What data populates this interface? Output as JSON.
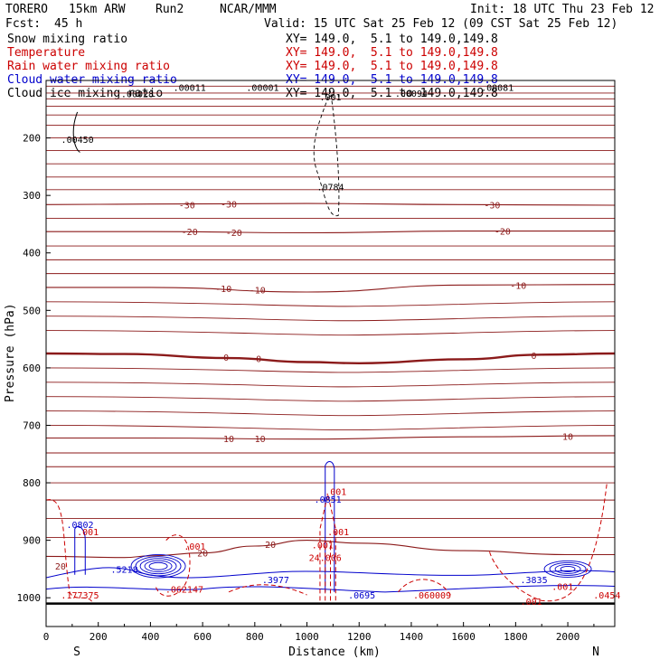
{
  "header": {
    "model": "TORERO",
    "resolution": "15km ARW",
    "run": "Run2",
    "org": "NCAR/MMM",
    "init": "Init: 18 UTC Thu 23 Feb 12",
    "fcst_label": "Fcst:",
    "fcst_value": "45 h",
    "valid": "Valid: 15 UTC Sat 25 Feb 12 (09 CST Sat 25 Feb 12)"
  },
  "fields": [
    {
      "name": "Snow mixing ratio",
      "xy": "XY= 149.0,  5.1 to 149.0,149.8",
      "color": "#000000"
    },
    {
      "name": "Temperature",
      "xy": "XY= 149.0,  5.1 to 149.0,149.8",
      "color": "#cc0000"
    },
    {
      "name": "Rain water mixing ratio",
      "xy": "XY= 149.0,  5.1 to 149.0,149.8",
      "color": "#cc0000"
    },
    {
      "name": "Cloud water mixing ratio",
      "xy": "XY= 149.0,  5.1 to 149.0,149.8",
      "color": "#0000cc"
    },
    {
      "name": "Cloud ice mixing ratio",
      "xy": "XY= 149.0,  5.1 to 149.0,149.8",
      "color": "#000000"
    }
  ],
  "chart_data": {
    "type": "line",
    "title": "",
    "xlabel": "Distance (km)",
    "ylabel": "Pressure (hPa)",
    "xlim": [
      0,
      2180
    ],
    "ylim": [
      1050,
      100
    ],
    "x_ticks": [
      0,
      200,
      400,
      600,
      800,
      1000,
      1200,
      1400,
      1600,
      1800,
      2000
    ],
    "y_ticks": [
      200,
      300,
      400,
      500,
      600,
      700,
      800,
      900,
      1000
    ],
    "x_end_labels": {
      "left": "S",
      "right": "N"
    },
    "temperature_color": "#8b1a1a",
    "temperature_contours": [
      {
        "level": -30,
        "points": [
          [
            0,
            316
          ],
          [
            400,
            315
          ],
          [
            1000,
            314
          ],
          [
            1600,
            316
          ],
          [
            2180,
            317
          ]
        ]
      },
      {
        "level": -20,
        "points": [
          [
            0,
            363
          ],
          [
            400,
            363
          ],
          [
            1000,
            365
          ],
          [
            1600,
            362
          ],
          [
            2180,
            362
          ]
        ]
      },
      {
        "level": -10,
        "points": [
          [
            0,
            460
          ],
          [
            400,
            460
          ],
          [
            1000,
            468
          ],
          [
            1600,
            456
          ],
          [
            2180,
            455
          ]
        ]
      },
      {
        "level": 0,
        "points": [
          [
            0,
            575
          ],
          [
            300,
            576
          ],
          [
            700,
            583
          ],
          [
            1000,
            590
          ],
          [
            1200,
            592
          ],
          [
            1600,
            585
          ],
          [
            1900,
            577
          ],
          [
            2180,
            575
          ]
        ]
      },
      {
        "level": 10,
        "points": [
          [
            0,
            722
          ],
          [
            400,
            722
          ],
          [
            1000,
            724
          ],
          [
            1600,
            720
          ],
          [
            2180,
            718
          ]
        ]
      },
      {
        "level": 20,
        "points": [
          [
            0,
            928
          ],
          [
            300,
            930
          ],
          [
            400,
            927
          ],
          [
            600,
            922
          ],
          [
            800,
            910
          ],
          [
            1000,
            900
          ],
          [
            1200,
            905
          ],
          [
            1600,
            918
          ],
          [
            2000,
            925
          ],
          [
            2180,
            925
          ]
        ]
      }
    ],
    "contour_labels": [
      {
        "text": "-30",
        "x": 540,
        "p": 316
      },
      {
        "text": "-30",
        "x": 700,
        "p": 315
      },
      {
        "text": "-30",
        "x": 1710,
        "p": 316
      },
      {
        "text": "-20",
        "x": 550,
        "p": 363
      },
      {
        "text": "-20",
        "x": 720,
        "p": 364
      },
      {
        "text": "-20",
        "x": 1750,
        "p": 362
      },
      {
        "text": "-10",
        "x": 680,
        "p": 462
      },
      {
        "text": "-10",
        "x": 810,
        "p": 464
      },
      {
        "text": "-10",
        "x": 1810,
        "p": 456
      },
      {
        "text": "0",
        "x": 690,
        "p": 581
      },
      {
        "text": "0",
        "x": 815,
        "p": 584
      },
      {
        "text": "0",
        "x": 1870,
        "p": 578
      },
      {
        "text": "10",
        "x": 700,
        "p": 723
      },
      {
        "text": "10",
        "x": 820,
        "p": 723
      },
      {
        "text": "10",
        "x": 2000,
        "p": 719
      },
      {
        "text": "20",
        "x": 600,
        "p": 922
      },
      {
        "text": "20",
        "x": 860,
        "p": 907
      },
      {
        "text": "20",
        "x": 55,
        "p": 945
      }
    ],
    "snow_labels": [
      {
        "text": ".00028",
        "x": 350,
        "p": 123
      },
      {
        "text": ".00011",
        "x": 550,
        "p": 112
      },
      {
        "text": ".00001",
        "x": 830,
        "p": 112
      },
      {
        "text": ".00450",
        "x": 120,
        "p": 202
      },
      {
        "text": ".001",
        "x": 1090,
        "p": 128
      },
      {
        "text": ".0784",
        "x": 1090,
        "p": 285
      },
      {
        "text": ".00094",
        "x": 1400,
        "p": 122
      },
      {
        "text": ".00081",
        "x": 1730,
        "p": 112
      }
    ],
    "rain_labels": [
      {
        "text": ".001",
        "x": 1110,
        "p": 815
      },
      {
        "text": ".001",
        "x": 1120,
        "p": 885
      },
      {
        "text": ".001",
        "x": 570,
        "p": 910
      },
      {
        "text": ".001",
        "x": 160,
        "p": 885
      },
      {
        "text": "24.006",
        "x": 1070,
        "p": 930
      },
      {
        "text": ".001",
        "x": 1060,
        "p": 908
      },
      {
        "text": ".177375",
        "x": 130,
        "p": 995
      },
      {
        "text": ".062147",
        "x": 530,
        "p": 985
      },
      {
        "text": ".060009",
        "x": 1480,
        "p": 995
      },
      {
        "text": ".001",
        "x": 1860,
        "p": 1006
      },
      {
        "text": ".001",
        "x": 1980,
        "p": 980
      },
      {
        "text": ".0454",
        "x": 2150,
        "p": 995
      }
    ],
    "cloud_water_labels": [
      {
        "text": ".0802",
        "x": 130,
        "p": 872
      },
      {
        "text": ".0851",
        "x": 1080,
        "p": 828
      },
      {
        "text": ".5218",
        "x": 300,
        "p": 950
      },
      {
        "text": ".3977",
        "x": 880,
        "p": 968
      },
      {
        "text": ".0695",
        "x": 1210,
        "p": 995
      },
      {
        "text": ".3835",
        "x": 1870,
        "p": 968
      }
    ]
  }
}
